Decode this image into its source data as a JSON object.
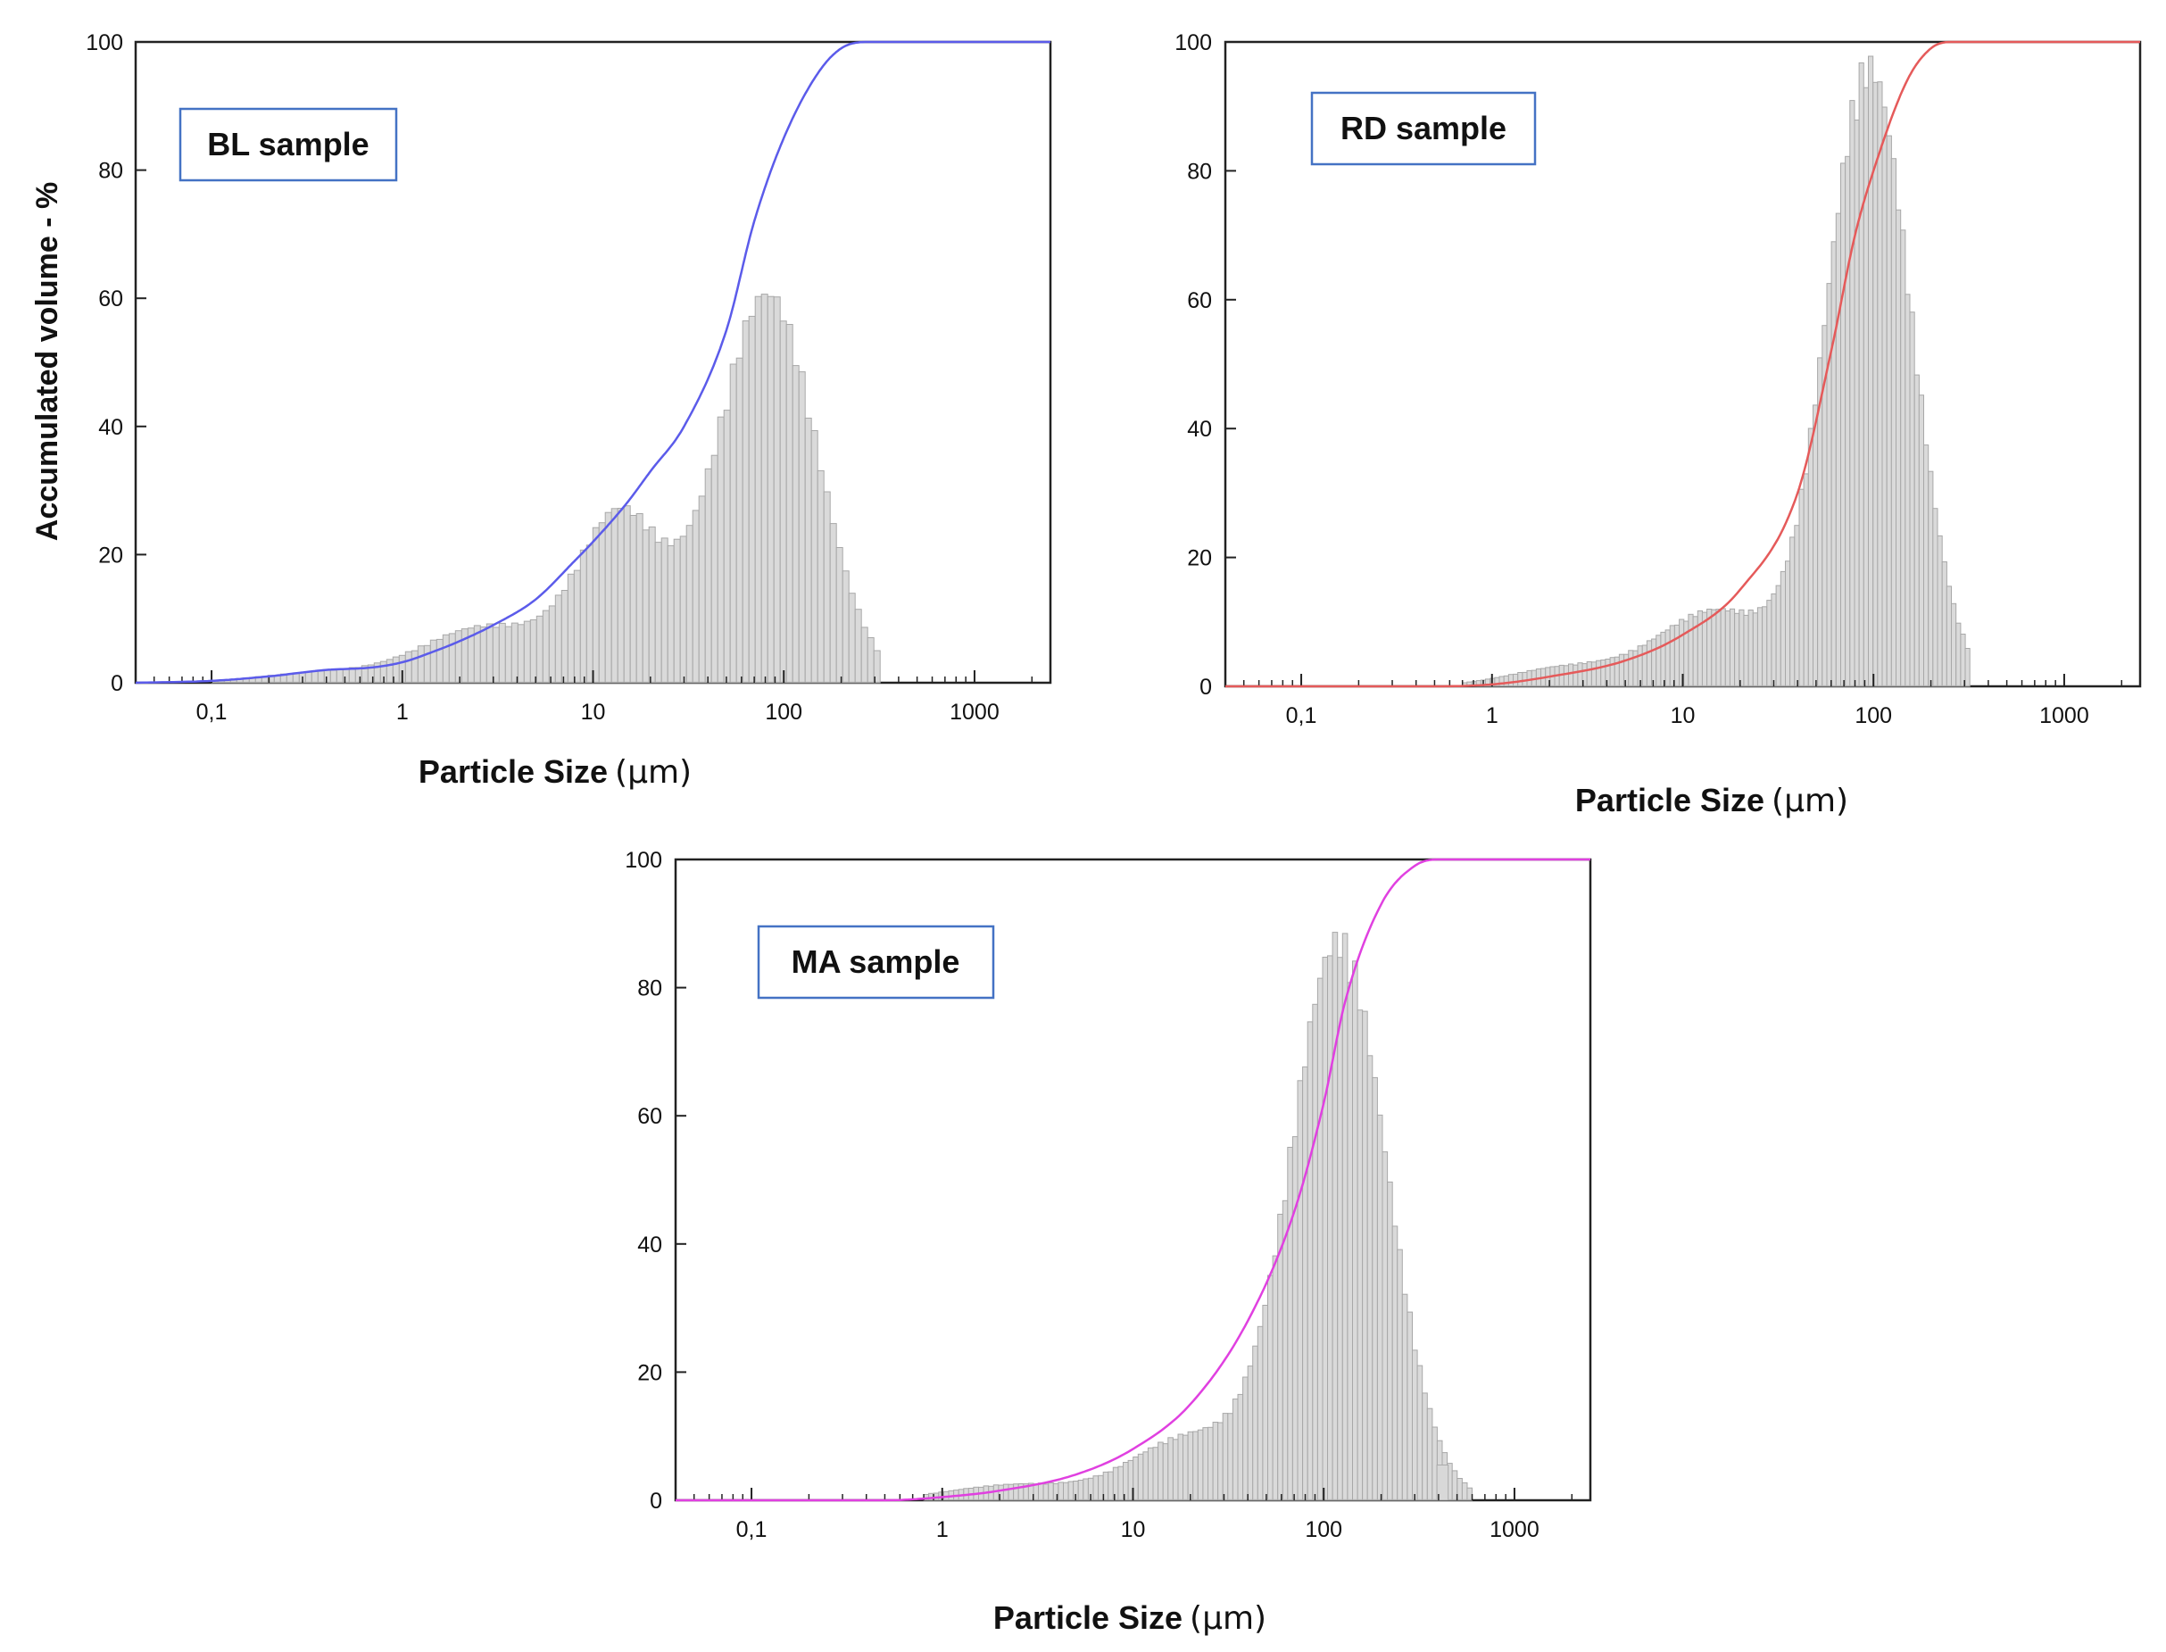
{
  "chart_data": [
    {
      "type": "bar+line",
      "panel": "BL",
      "annotation": "BL sample",
      "xlabel": "Particle Size",
      "xlabel_unit": "(µm)",
      "ylabel": "Accumulated volume  - %",
      "x_scale": "log",
      "xlim": [
        0.04,
        2500
      ],
      "ylim": [
        0,
        100
      ],
      "xticks": [
        "0,1",
        "1",
        "10",
        "100",
        "1000"
      ],
      "yticks": [
        "0",
        "20",
        "40",
        "60",
        "80",
        "100"
      ],
      "line_color": "#5b5bea",
      "histogram": {
        "peaks": [
          {
            "mu": 14,
            "sigma": 0.22,
            "amp": 26
          },
          {
            "mu": 82,
            "sigma": 0.26,
            "amp": 62
          },
          {
            "mu": 2.8,
            "sigma": 0.35,
            "amp": 9
          },
          {
            "mu": 0.35,
            "sigma": 0.3,
            "amp": 1.5
          }
        ],
        "x_range": [
          0.08,
          320
        ]
      },
      "cumulative": [
        [
          0.04,
          0
        ],
        [
          0.1,
          0.3
        ],
        [
          0.2,
          1
        ],
        [
          0.4,
          2
        ],
        [
          0.7,
          2.4
        ],
        [
          1,
          3.2
        ],
        [
          1.5,
          5
        ],
        [
          2,
          6.5
        ],
        [
          3,
          9
        ],
        [
          5,
          13
        ],
        [
          8,
          19
        ],
        [
          10,
          22
        ],
        [
          15,
          28
        ],
        [
          20,
          33
        ],
        [
          30,
          40
        ],
        [
          50,
          55
        ],
        [
          70,
          72
        ],
        [
          100,
          85
        ],
        [
          150,
          95
        ],
        [
          200,
          99
        ],
        [
          280,
          100
        ],
        [
          2500,
          100
        ]
      ]
    },
    {
      "type": "bar+line",
      "panel": "RD",
      "annotation": "RD sample",
      "xlabel": "Particle Size",
      "xlabel_unit": "(µm)",
      "x_scale": "log",
      "xlim": [
        0.04,
        2500
      ],
      "ylim": [
        0,
        100
      ],
      "xticks": [
        "0,1",
        "1",
        "10",
        "100",
        "1000"
      ],
      "yticks": [
        "0",
        "20",
        "40",
        "60",
        "80",
        "100"
      ],
      "line_color": "#e55a5a",
      "histogram": {
        "peaks": [
          {
            "mu": 95,
            "sigma": 0.22,
            "amp": 98
          },
          {
            "mu": 15,
            "sigma": 0.3,
            "amp": 12
          },
          {
            "mu": 2.5,
            "sigma": 0.3,
            "amp": 3
          }
        ],
        "x_range": [
          0.7,
          320
        ]
      },
      "cumulative": [
        [
          0.04,
          0
        ],
        [
          0.5,
          0
        ],
        [
          1,
          0.3
        ],
        [
          2,
          1.5
        ],
        [
          5,
          4
        ],
        [
          10,
          8
        ],
        [
          20,
          15
        ],
        [
          40,
          30
        ],
        [
          60,
          52
        ],
        [
          80,
          70
        ],
        [
          100,
          80
        ],
        [
          150,
          94
        ],
        [
          200,
          99
        ],
        [
          260,
          100
        ],
        [
          2500,
          100
        ]
      ]
    },
    {
      "type": "bar+line",
      "panel": "MA",
      "annotation": "MA sample",
      "xlabel": "Particle Size",
      "xlabel_unit": "(µm)",
      "x_scale": "log",
      "xlim": [
        0.04,
        2500
      ],
      "ylim": [
        0,
        100
      ],
      "xticks": [
        "0,1",
        "1",
        "10",
        "100",
        "1000"
      ],
      "yticks": [
        "0",
        "20",
        "40",
        "60",
        "80",
        "100"
      ],
      "line_color": "#e040e0",
      "histogram": {
        "peaks": [
          {
            "mu": 120,
            "sigma": 0.25,
            "amp": 89
          },
          {
            "mu": 20,
            "sigma": 0.3,
            "amp": 10
          },
          {
            "mu": 2.5,
            "sigma": 0.35,
            "amp": 2.5
          }
        ],
        "x_range": [
          0.8,
          600
        ],
        "outliers": [
          {
            "x": 420,
            "y": 5.5
          }
        ]
      },
      "cumulative": [
        [
          0.04,
          0
        ],
        [
          0.5,
          0
        ],
        [
          1,
          0.5
        ],
        [
          2,
          1.5
        ],
        [
          5,
          4
        ],
        [
          10,
          8
        ],
        [
          20,
          15
        ],
        [
          40,
          28
        ],
        [
          70,
          45
        ],
        [
          100,
          62
        ],
        [
          130,
          78
        ],
        [
          200,
          93
        ],
        [
          300,
          99
        ],
        [
          400,
          100
        ],
        [
          2500,
          100
        ]
      ]
    }
  ]
}
